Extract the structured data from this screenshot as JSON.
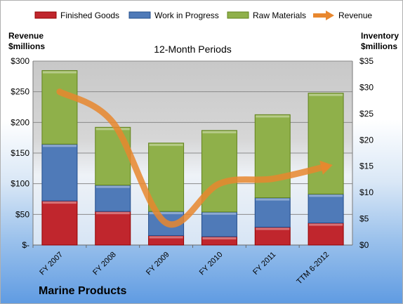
{
  "company": "Marine Products",
  "chart_data": {
    "type": "bar",
    "stacked": true,
    "title": "12-Month Periods",
    "categories": [
      "FY 2007",
      "FY 2008",
      "FY 2009",
      "FY 2010",
      "FY 2011",
      "TTM 6-2012"
    ],
    "series": [
      {
        "name": "Finished Goods",
        "color": "#c0262d",
        "values": [
          8.4,
          6.4,
          1.8,
          1.6,
          3.4,
          4.2
        ]
      },
      {
        "name": "Work in Progress",
        "color": "#4f7ab8",
        "values": [
          10.8,
          5.0,
          4.6,
          4.7,
          5.6,
          5.5
        ]
      },
      {
        "name": "Raw Materials",
        "color": "#8fb04a",
        "values": [
          14.0,
          11.0,
          13.0,
          15.5,
          15.8,
          19.2
        ]
      }
    ],
    "line_series": {
      "name": "Revenue",
      "color": "#e8872e",
      "values": [
        250,
        200,
        36,
        100,
        108,
        128
      ]
    },
    "left_axis": {
      "label_line1": "Revenue",
      "label_line2": "$millions",
      "ylim": [
        0,
        300
      ],
      "tick_labels": [
        "$-",
        "$50",
        "$100",
        "$150",
        "$200",
        "$250",
        "$300"
      ]
    },
    "right_axis": {
      "label_line1": "Inventory",
      "label_line2": "$millions",
      "ylim": [
        0,
        35
      ],
      "tick_labels": [
        "$0",
        "$5",
        "$10",
        "$15",
        "$20",
        "$25",
        "$30",
        "$35"
      ]
    },
    "legend_position": "top",
    "grid": true
  }
}
